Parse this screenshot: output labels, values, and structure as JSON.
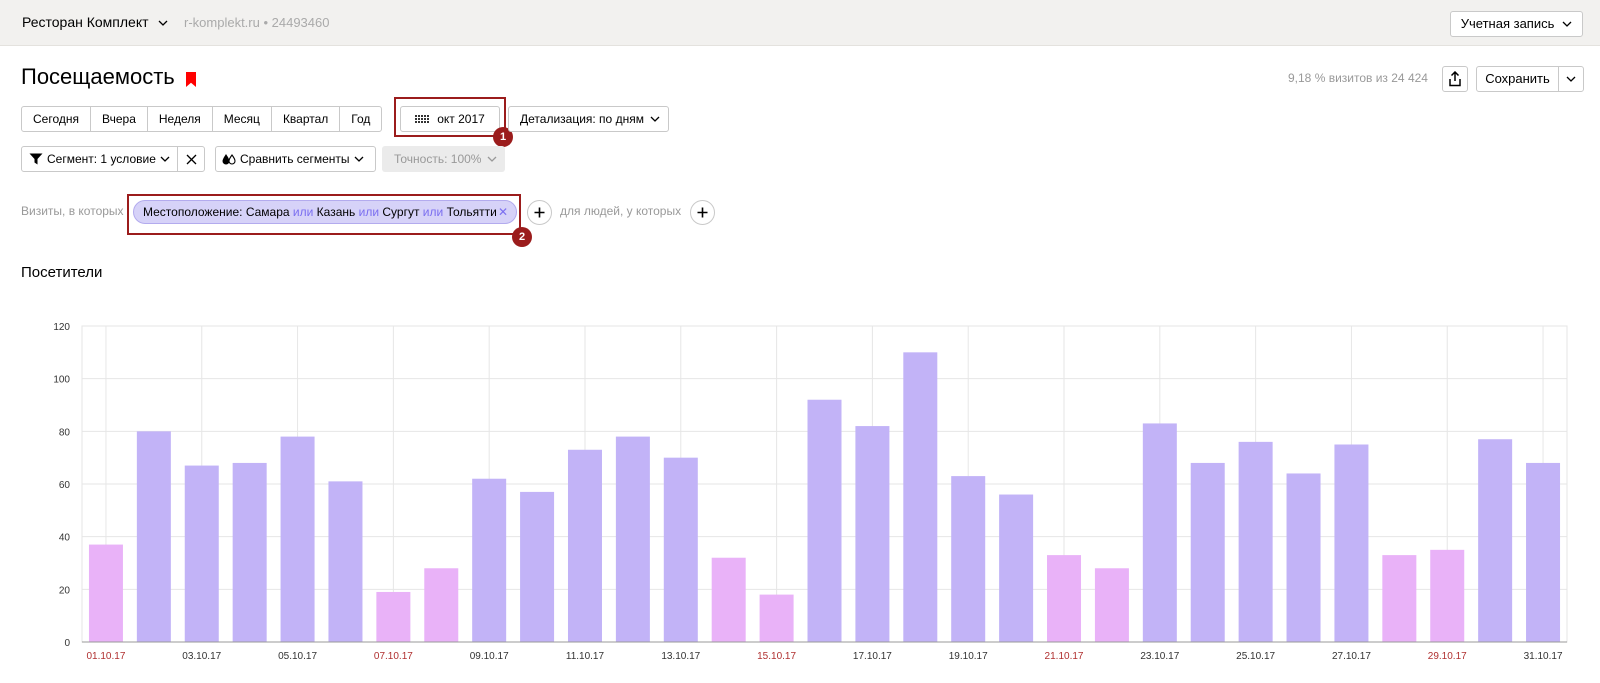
{
  "topbar": {
    "counter_name": "Ресторан Комплект",
    "counter_site": "r-komplekt.ru • 24493460",
    "account_label": "Учетная запись"
  },
  "page": {
    "title": "Посещаемость",
    "share_info": "9,18 % визитов из 24 424",
    "save_label": "Сохранить"
  },
  "period": {
    "buttons": [
      "Сегодня",
      "Вчера",
      "Неделя",
      "Месяц",
      "Квартал",
      "Год"
    ],
    "month_label": "окт 2017",
    "detail_label": "Детализация: по дням"
  },
  "segments": {
    "segment_label": "Сегмент: 1 условие",
    "compare_label": "Сравнить сегменты",
    "accuracy_label": "Точность: 100%"
  },
  "filter": {
    "prefix": "Визиты, в которых",
    "chip": {
      "field": "Местоположение:",
      "values": [
        "Самара",
        "Казань",
        "Сургут",
        "Тольятти"
      ],
      "joiner": "или"
    },
    "people_label": "для людей, у которых"
  },
  "callouts": [
    "1",
    "2"
  ],
  "colors": {
    "weekday_bar": "#c2b3f7",
    "weekend_bar": "#e9b2f8",
    "weekend_label": "#b03030",
    "callout": "#9b1c1c",
    "bookmark": "#ff0000"
  },
  "chart_data": {
    "type": "bar",
    "title": "Посетители",
    "ylim": [
      0,
      120
    ],
    "yticks": [
      0,
      20,
      40,
      60,
      80,
      100,
      120
    ],
    "grid": true,
    "categories": [
      "01.10.17",
      "02.10.17",
      "03.10.17",
      "04.10.17",
      "05.10.17",
      "06.10.17",
      "07.10.17",
      "08.10.17",
      "09.10.17",
      "10.10.17",
      "11.10.17",
      "12.10.17",
      "13.10.17",
      "14.10.17",
      "15.10.17",
      "16.10.17",
      "17.10.17",
      "18.10.17",
      "19.10.17",
      "20.10.17",
      "21.10.17",
      "22.10.17",
      "23.10.17",
      "24.10.17",
      "25.10.17",
      "26.10.17",
      "27.10.17",
      "28.10.17",
      "29.10.17",
      "30.10.17",
      "31.10.17"
    ],
    "values": [
      37,
      80,
      67,
      68,
      78,
      61,
      19,
      28,
      62,
      57,
      73,
      78,
      70,
      32,
      18,
      92,
      82,
      110,
      63,
      56,
      33,
      28,
      83,
      68,
      76,
      64,
      75,
      33,
      35,
      77,
      68
    ],
    "weekend": [
      true,
      false,
      false,
      false,
      false,
      false,
      true,
      true,
      false,
      false,
      false,
      false,
      false,
      true,
      true,
      false,
      false,
      false,
      false,
      false,
      true,
      true,
      false,
      false,
      false,
      false,
      false,
      true,
      true,
      false,
      false
    ],
    "xtick_labels": [
      "01.10.17",
      "03.10.17",
      "05.10.17",
      "07.10.17",
      "09.10.17",
      "11.10.17",
      "13.10.17",
      "15.10.17",
      "17.10.17",
      "19.10.17",
      "21.10.17",
      "23.10.17",
      "25.10.17",
      "27.10.17",
      "29.10.17",
      "31.10.17"
    ]
  }
}
